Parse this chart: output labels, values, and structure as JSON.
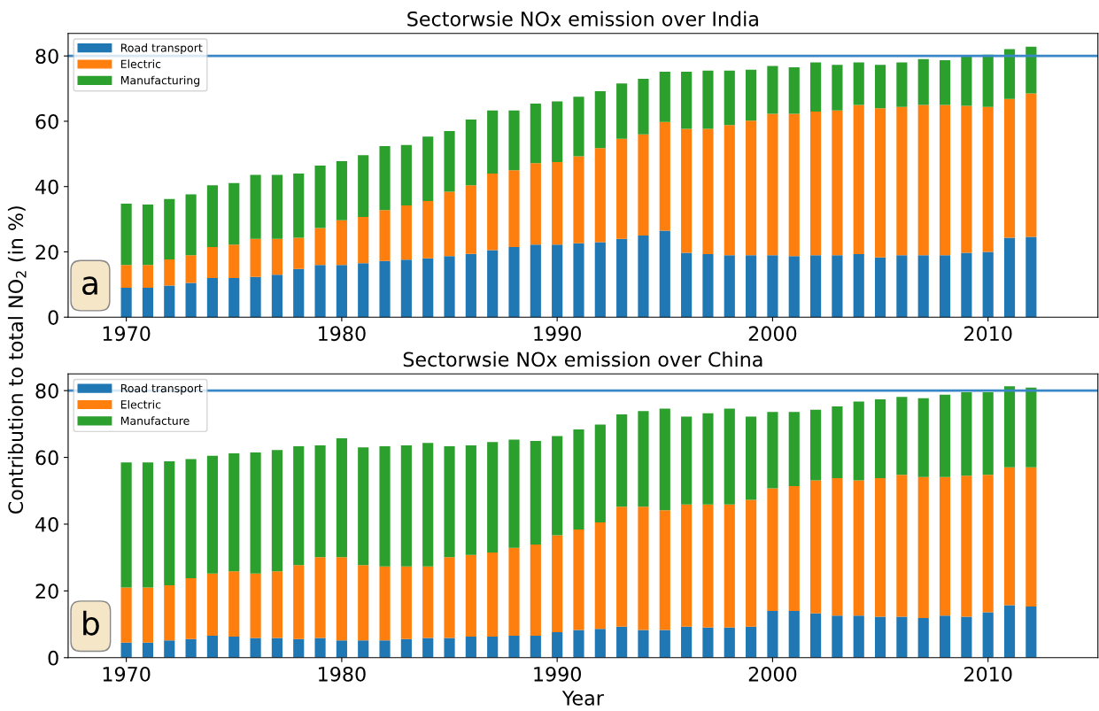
{
  "chart_data": [
    {
      "type": "bar",
      "stacked": true,
      "title": "Sectorwsie NOx emission over India",
      "x": [
        1970,
        1971,
        1972,
        1973,
        1974,
        1975,
        1976,
        1977,
        1978,
        1979,
        1980,
        1981,
        1982,
        1983,
        1984,
        1985,
        1986,
        1987,
        1988,
        1989,
        1990,
        1991,
        1992,
        1993,
        1994,
        1995,
        1996,
        1997,
        1998,
        1999,
        2000,
        2001,
        2002,
        2003,
        2004,
        2005,
        2006,
        2007,
        2008,
        2009,
        2010,
        2011,
        2012
      ],
      "series": [
        {
          "name": "Road transport",
          "color": "#1f77b4",
          "values": [
            9,
            9,
            9.7,
            10.5,
            12,
            12,
            12.3,
            13,
            14.8,
            16,
            16,
            16.5,
            17.2,
            17.6,
            18,
            18.7,
            19.4,
            20.5,
            21.5,
            22.2,
            22.2,
            22.6,
            23,
            24,
            25,
            26.5,
            19.7,
            19.3,
            19,
            19,
            19,
            18.7,
            19,
            19,
            19.3,
            18.3,
            19,
            19,
            19,
            19.7,
            20,
            24.3,
            24.6
          ]
        },
        {
          "name": "Electric",
          "color": "#ff7f0e",
          "values": [
            7,
            7,
            8,
            8.5,
            9.5,
            10.2,
            11.7,
            11,
            9.5,
            11.3,
            13.7,
            14.2,
            15.6,
            16.6,
            17.6,
            19.7,
            21,
            23.5,
            23.5,
            25,
            25.3,
            26.7,
            28.8,
            30.6,
            31,
            33.3,
            38,
            38.4,
            39.8,
            41.2,
            43.3,
            43.6,
            44,
            44.3,
            45.7,
            45.7,
            45.4,
            46,
            46,
            45,
            44.4,
            42.5,
            43.9
          ]
        },
        {
          "name": "Manufacturing",
          "color": "#2ca02c",
          "values": [
            18.8,
            18.5,
            18.5,
            18.6,
            18.9,
            18.9,
            19.6,
            19.6,
            19.7,
            19.1,
            18.1,
            18.9,
            19.6,
            18.5,
            19.7,
            18.6,
            20.1,
            19.3,
            18.3,
            18.2,
            18.6,
            18.2,
            17.4,
            17,
            17,
            15.4,
            17.5,
            17.8,
            16.7,
            15.6,
            14.6,
            14.2,
            15,
            14,
            13,
            13.3,
            13.6,
            14,
            13.7,
            15.3,
            16,
            15.3,
            14.3
          ]
        }
      ],
      "xlim": [
        1967.3,
        2015.1
      ],
      "xticks": [
        1970,
        1980,
        1990,
        2000,
        2010
      ],
      "ylim": [
        0,
        86.9
      ],
      "yticks": [
        0,
        20,
        40,
        60,
        80
      ],
      "ref_lines": [
        {
          "axis": "y",
          "value": 80,
          "color": "#3a87c8"
        }
      ],
      "annotations": [
        "a"
      ],
      "legend": "top left",
      "grid": false
    },
    {
      "type": "bar",
      "stacked": true,
      "title": "Sectorwsie NOx emission over China",
      "xlabel": "Year",
      "ylabel": "Contribution to total NO$_{2}$ (in %)",
      "x": [
        1970,
        1971,
        1972,
        1973,
        1974,
        1975,
        1976,
        1977,
        1978,
        1979,
        1980,
        1981,
        1982,
        1983,
        1984,
        1985,
        1986,
        1987,
        1988,
        1989,
        1990,
        1991,
        1992,
        1993,
        1994,
        1995,
        1996,
        1997,
        1998,
        1999,
        2000,
        2001,
        2002,
        2003,
        2004,
        2005,
        2006,
        2007,
        2008,
        2009,
        2010,
        2011,
        2012
      ],
      "series": [
        {
          "name": "Road transport",
          "color": "#1f77b4",
          "values": [
            4.5,
            4.5,
            5.2,
            5.6,
            6.6,
            6.3,
            5.9,
            5.9,
            5.6,
            5.9,
            5.2,
            5.2,
            5.2,
            5.6,
            5.9,
            5.9,
            6.3,
            6.3,
            6.6,
            6.6,
            7.6,
            8.3,
            8.6,
            9.3,
            8.3,
            8.3,
            9.3,
            9,
            9,
            9.3,
            14,
            14,
            13.3,
            12.6,
            12.6,
            12.3,
            12.3,
            11.9,
            12.6,
            12.3,
            13.6,
            15.7,
            15.3
          ]
        },
        {
          "name": "Electric",
          "color": "#ff7f0e",
          "values": [
            16.5,
            16.5,
            16.5,
            18.2,
            18.6,
            19.6,
            19.3,
            20,
            22.1,
            24.2,
            24.9,
            22.5,
            22.1,
            21.7,
            21.4,
            24.2,
            24.5,
            25.2,
            26.3,
            27.3,
            29.1,
            30.1,
            31.9,
            35.9,
            36.9,
            35.9,
            36.6,
            36.9,
            36.9,
            38,
            36.7,
            37.4,
            39.8,
            41.2,
            40.5,
            41.5,
            42.5,
            42.2,
            41.5,
            42.2,
            41.2,
            41.3,
            41.7
          ]
        },
        {
          "name": "Manufacture",
          "color": "#2ca02c",
          "values": [
            37.5,
            37.5,
            37.1,
            35.7,
            35.3,
            35.3,
            36.3,
            36.3,
            35.6,
            33.5,
            35.6,
            35.3,
            36,
            36.3,
            37,
            33.2,
            32.8,
            33.1,
            32.4,
            31,
            29.7,
            30,
            29.3,
            27.7,
            28.7,
            30.4,
            26.3,
            27.3,
            28.7,
            24.9,
            22.9,
            22.2,
            21.2,
            21.5,
            23.6,
            23.6,
            23.3,
            23.6,
            24.7,
            25,
            24.7,
            24.3,
            23.9
          ]
        }
      ],
      "xlim": [
        1967.3,
        2015.1
      ],
      "xticks": [
        1970,
        1980,
        1990,
        2000,
        2010
      ],
      "ylim": [
        0,
        85
      ],
      "yticks": [
        0,
        20,
        40,
        60,
        80
      ],
      "ref_lines": [
        {
          "axis": "y",
          "value": 80,
          "color": "#3a87c8"
        }
      ],
      "annotations": [
        "b"
      ],
      "legend": "top left",
      "grid": false
    }
  ]
}
